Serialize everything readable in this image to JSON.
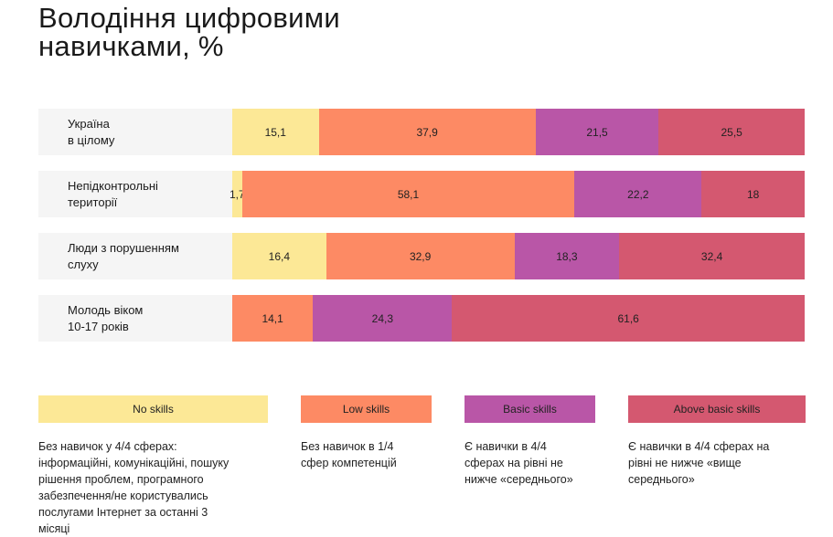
{
  "title_line1": "Володіння цифровими",
  "title_line2": "навичками, %",
  "chart_data": {
    "type": "bar",
    "orientation": "horizontal",
    "stacked": true,
    "normalized_to": 100,
    "categories": [
      [
        "Україна",
        "в цілому"
      ],
      [
        "Непідконтрольні",
        "території"
      ],
      [
        "Люди з порушенням",
        "слуху"
      ],
      [
        "Молодь віком",
        "10-17 років"
      ]
    ],
    "series": [
      {
        "name": "No skills",
        "color": "#fce896",
        "values": [
          15.1,
          1.7,
          16.4,
          0
        ]
      },
      {
        "name": "Low skills",
        "color": "#fd8a64",
        "values": [
          37.9,
          58.1,
          32.9,
          14.1
        ]
      },
      {
        "name": "Basic skills",
        "color": "#b956a7",
        "values": [
          21.5,
          22.2,
          18.3,
          24.3
        ]
      },
      {
        "name": "Above basic skills",
        "color": "#d45870",
        "values": [
          25.5,
          18,
          32.4,
          61.6
        ]
      }
    ],
    "value_labels": [
      [
        "15,1",
        "37,9",
        "21,5",
        "25,5"
      ],
      [
        "1,7",
        "58,1",
        "22,2",
        "18"
      ],
      [
        "16,4",
        "32,9",
        "18,3",
        "32,4"
      ],
      [
        "",
        "14,1",
        "24,3",
        "61,6"
      ]
    ],
    "legend_position": "bottom"
  },
  "legend": [
    {
      "label": "No skills",
      "color": "#fce896",
      "description": [
        "Без навичок у 4/4 сферах:",
        "інформаційні, комунікаційні, пошуку",
        "рішення проблем, програмного",
        "забезпечення/не користувались",
        "послугами Інтернет за останні 3",
        "місяці"
      ]
    },
    {
      "label": "Low skills",
      "color": "#fd8a64",
      "description": [
        "Без навичок в 1/4",
        "сфер компетенцій"
      ]
    },
    {
      "label": "Basic skills",
      "color": "#b956a7",
      "description": [
        "Є навички в 4/4",
        "сферах на рівні не",
        "нижче «середнього»"
      ]
    },
    {
      "label": "Above basic skills",
      "color": "#d45870",
      "description": [
        "Є навички в 4/4 сферах на",
        "рівні не нижче «вище",
        "середнього»"
      ]
    }
  ]
}
